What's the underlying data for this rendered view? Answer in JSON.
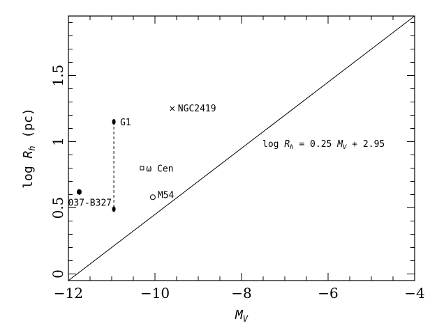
{
  "chart_data": {
    "type": "scatter",
    "title": "",
    "xlabel": "M_V",
    "ylabel": "log R_h (pc)",
    "xlim": [
      -12,
      -4
    ],
    "ylim": [
      -0.05,
      1.95
    ],
    "grid": false,
    "legend": "none",
    "x_ticks": [
      -12,
      -10,
      -8,
      -6,
      -4
    ],
    "x_tick_labels": [
      "−12",
      "−10",
      "−8",
      "−6",
      "−4"
    ],
    "y_ticks": [
      0,
      0.5,
      1,
      1.5
    ],
    "y_tick_labels": [
      "0",
      "0.5",
      "1",
      "1.5"
    ],
    "points": [
      {
        "label": "NGC2419",
        "x": -9.6,
        "y": 1.25,
        "marker": "cross"
      },
      {
        "label": "G1",
        "x": -10.95,
        "y": 1.15,
        "marker": "filled-ellipse"
      },
      {
        "label": "",
        "x": -10.95,
        "y": 0.49,
        "marker": "filled-ellipse"
      },
      {
        "label": "ω Cen",
        "x": -10.3,
        "y": 0.8,
        "marker": "open-square"
      },
      {
        "label": "M54",
        "x": -10.05,
        "y": 0.58,
        "marker": "open-circle"
      },
      {
        "label": "037-B327",
        "x": -11.75,
        "y": 0.62,
        "marker": "filled-circle"
      }
    ],
    "g1_range": {
      "x": -10.95,
      "y_low": 0.49,
      "y_high": 1.15
    },
    "relation": {
      "label": "log R_h = 0.25 M_V + 2.95",
      "slope": 0.25,
      "intercept": 2.95
    }
  }
}
